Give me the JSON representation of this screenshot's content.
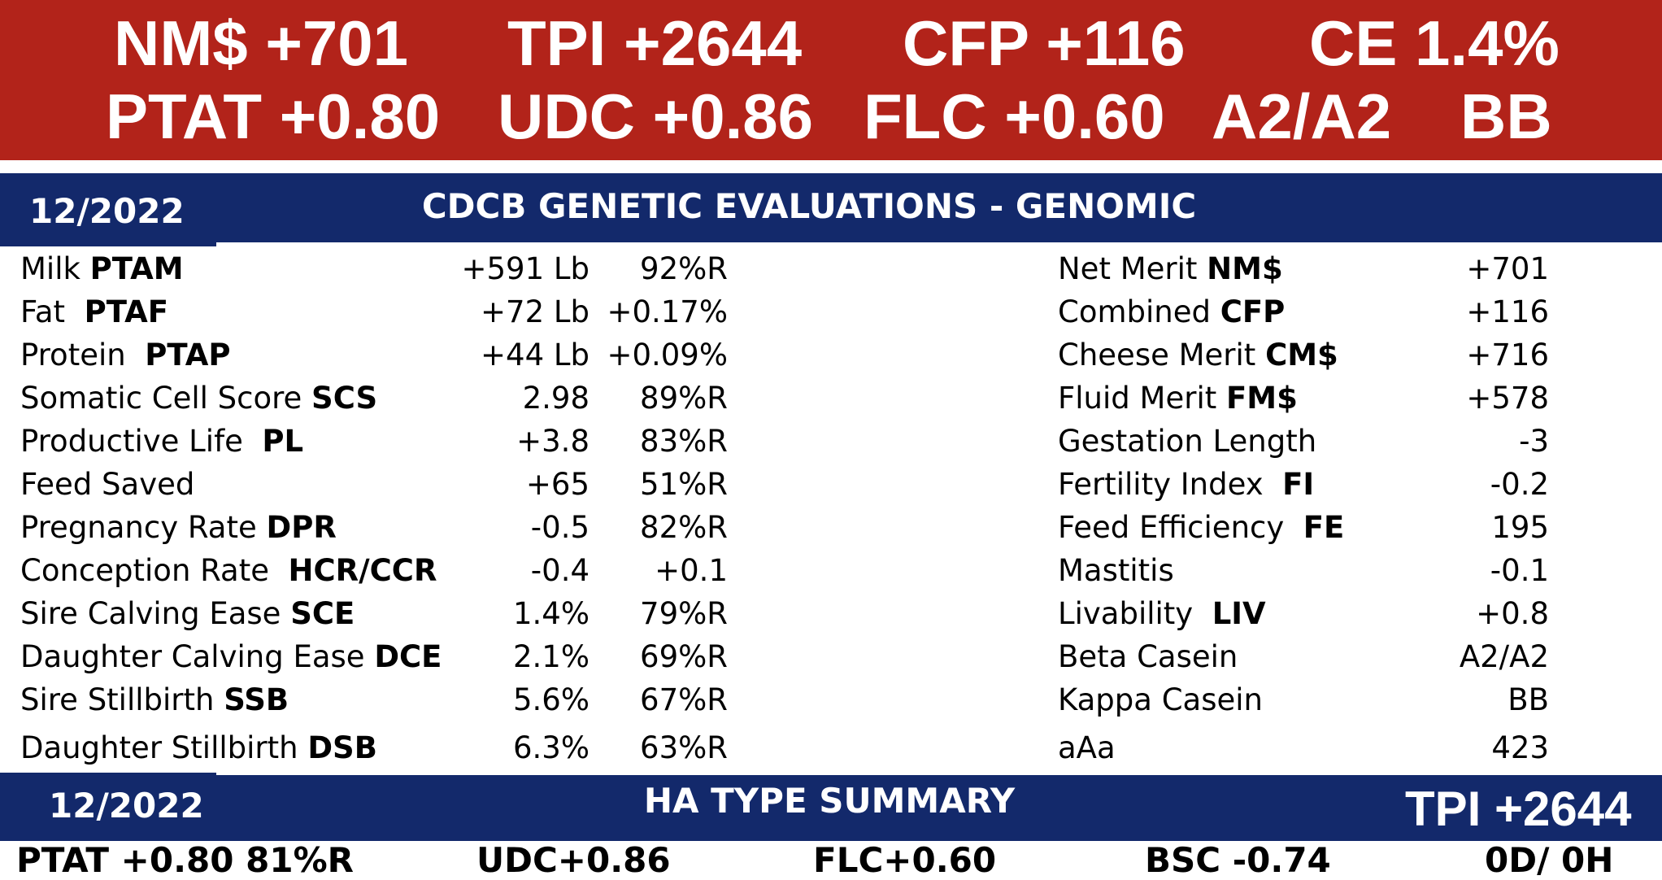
{
  "top_band": {
    "row1": [
      "NM$ +701",
      "TPI +2644",
      "CFP +116",
      "CE 1.4%"
    ],
    "row2": [
      "PTAT +0.80",
      "UDC +0.86",
      "FLC +0.60",
      "A2/A2",
      "BB"
    ]
  },
  "genomic_header": {
    "date": "12/2022",
    "title": "CDCB  GENETIC EVALUATIONS - GENOMIC"
  },
  "left_table": [
    {
      "label": "Milk ",
      "abbr": "PTAM",
      "value": "+591 Lb",
      "second": "92%R"
    },
    {
      "label": "Fat  ",
      "abbr": "PTAF",
      "value": "+72 Lb",
      "second": "+0.17%"
    },
    {
      "label": "Protein  ",
      "abbr": "PTAP",
      "value": "+44 Lb",
      "second": "+0.09%"
    },
    {
      "label": "Somatic Cell Score ",
      "abbr": "SCS",
      "value": "2.98",
      "second": "89%R"
    },
    {
      "label": "Productive Life  ",
      "abbr": "PL",
      "value": "+3.8",
      "second": "83%R"
    },
    {
      "label": "Feed Saved",
      "abbr": "",
      "value": "+65",
      "second": "51%R"
    },
    {
      "label": "Pregnancy Rate ",
      "abbr": "DPR",
      "value": "-0.5",
      "second": "82%R"
    },
    {
      "label": "Conception Rate  ",
      "abbr": "HCR/CCR",
      "value": "-0.4",
      "second": "+0.1"
    },
    {
      "label": "Sire Calving Ease ",
      "abbr": "SCE",
      "value": "1.4%",
      "second": "79%R"
    },
    {
      "label": "Daughter Calving Ease ",
      "abbr": "DCE",
      "value": "2.1%",
      "second": "69%R"
    },
    {
      "label": "Sire Stillbirth ",
      "abbr": "SSB",
      "value": "5.6%",
      "second": "67%R"
    },
    {
      "label": "Daughter Stillbirth ",
      "abbr": "DSB",
      "value": "6.3%",
      "second": "63%R"
    }
  ],
  "right_table": [
    {
      "label": "Net Merit ",
      "abbr": "NM$",
      "value": "+701"
    },
    {
      "label": "Combined ",
      "abbr": "CFP",
      "value": "+116"
    },
    {
      "label": "Cheese Merit ",
      "abbr": "CM$",
      "value": "+716"
    },
    {
      "label": "Fluid Merit ",
      "abbr": "FM$",
      "value": "+578"
    },
    {
      "label": "Gestation Length",
      "abbr": "",
      "value": "-3"
    },
    {
      "label": "Fertility Index  ",
      "abbr": "FI",
      "value": "-0.2"
    },
    {
      "label": "Feed Efficiency  ",
      "abbr": "FE",
      "value": "195"
    },
    {
      "label": "Mastitis",
      "abbr": "",
      "value": "-0.1"
    },
    {
      "label": "Livability  ",
      "abbr": "LIV",
      "value": "+0.8"
    },
    {
      "label": "Beta Casein",
      "abbr": "",
      "value": "A2/A2"
    },
    {
      "label": "Kappa Casein",
      "abbr": "",
      "value": "BB"
    },
    {
      "label": "aAa",
      "abbr": "",
      "value": "423"
    }
  ],
  "type_header": {
    "date": "12/2022",
    "title": "HA TYPE SUMMARY",
    "tpi": "TPI +2644"
  },
  "type_summary": {
    "ptat": "PTAT +0.80  81%R",
    "udc": "UDC+0.86",
    "flc": "FLC+0.60",
    "bsc": "BSC -0.74",
    "dh": "0D/ 0H"
  },
  "colors": {
    "red_band": "#b2231a",
    "navy": "#13296b",
    "text": "#000000",
    "white": "#ffffff"
  }
}
